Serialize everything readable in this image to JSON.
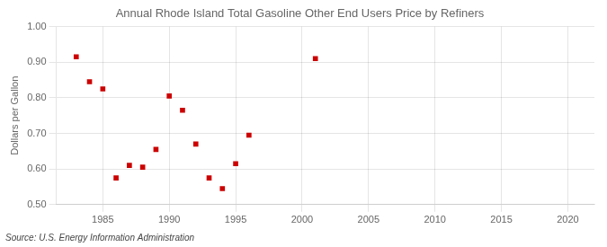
{
  "chart_data": {
    "type": "scatter",
    "title": "Annual Rhode Island Total Gasoline Other End Users Price by Refiners",
    "ylabel": "Dollars per Gallon",
    "annotation": "Source: U.S. Energy Information Administration",
    "x": [
      1983,
      1984,
      1985,
      1986,
      1987,
      1988,
      1989,
      1990,
      1991,
      1992,
      1993,
      1994,
      1995,
      1996,
      2001
    ],
    "values": [
      0.915,
      0.845,
      0.825,
      0.575,
      0.61,
      0.605,
      0.655,
      0.805,
      0.765,
      0.67,
      0.575,
      0.545,
      0.615,
      0.695,
      0.91
    ],
    "color": "#cc0000",
    "marker": "square",
    "xlim": [
      1981.5,
      2022
    ],
    "ylim": [
      0.5,
      1
    ],
    "xticks": [
      1985,
      1990,
      1995,
      2000,
      2005,
      2010,
      2015,
      2020
    ],
    "yticks": [
      {
        "value": 0.5,
        "label": "0.50"
      },
      {
        "value": 0.6,
        "label": "0.60"
      },
      {
        "value": 0.7,
        "label": "0.70"
      },
      {
        "value": 0.8,
        "label": "0.80"
      },
      {
        "value": 0.9,
        "label": "0.90"
      },
      {
        "value": 1,
        "label": "1.00"
      }
    ],
    "grid": true
  }
}
